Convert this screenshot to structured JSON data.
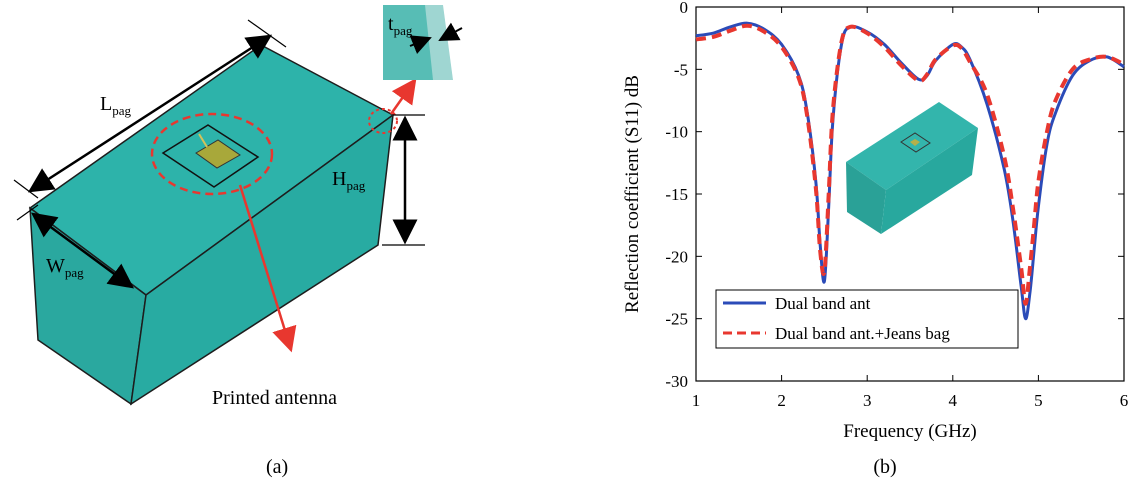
{
  "panel_a": {
    "caption": "(a)",
    "label_length": "L",
    "label_length_sub": "pag",
    "label_width": "W",
    "label_width_sub": "pag",
    "label_height": "H",
    "label_height_sub": "pag",
    "label_thickness": "t",
    "label_thickness_sub": "pag",
    "annotation": "Printed antenna",
    "colors": {
      "bag": "#2db3aa",
      "patch": "#a8a83a",
      "arrow_red": "#e8372f"
    }
  },
  "panel_b": {
    "caption": "(b)",
    "legend": [
      "Dual band ant",
      "Dual band ant.+Jeans bag"
    ]
  },
  "chart_data": {
    "type": "line",
    "xlabel": "Frequency (GHz)",
    "ylabel": "Reflection coefficient (S11) dB",
    "xlim": [
      1,
      6
    ],
    "ylim": [
      -30,
      0
    ],
    "xticks": [
      1,
      2,
      3,
      4,
      5,
      6
    ],
    "yticks": [
      0,
      -5,
      -10,
      -15,
      -20,
      -25,
      -30
    ],
    "grid": false,
    "legend_position": "bottom-left",
    "series": [
      {
        "name": "Dual band ant",
        "color": "#2b4bb8",
        "style": "solid",
        "x": [
          1.0,
          1.2,
          1.4,
          1.6,
          1.8,
          2.0,
          2.2,
          2.3,
          2.4,
          2.45,
          2.5,
          2.55,
          2.6,
          2.7,
          2.8,
          3.0,
          3.2,
          3.4,
          3.6,
          3.7,
          3.8,
          4.0,
          4.1,
          4.2,
          4.4,
          4.6,
          4.7,
          4.8,
          4.85,
          4.9,
          4.95,
          5.0,
          5.1,
          5.2,
          5.4,
          5.6,
          5.8,
          6.0
        ],
        "y": [
          -2.3,
          -2.1,
          -1.6,
          -1.3,
          -1.8,
          -3.0,
          -5.5,
          -8.5,
          -14.0,
          -19.0,
          -22.0,
          -16.0,
          -9.0,
          -3.0,
          -1.6,
          -2.0,
          -3.0,
          -4.5,
          -5.8,
          -5.5,
          -4.3,
          -3.0,
          -3.2,
          -4.2,
          -7.8,
          -13.0,
          -17.0,
          -22.5,
          -25.0,
          -23.0,
          -19.5,
          -16.0,
          -11.0,
          -8.5,
          -5.5,
          -4.3,
          -4.0,
          -4.8
        ]
      },
      {
        "name": "Dual band ant.+Jeans bag",
        "color": "#e8372f",
        "style": "dashed",
        "x": [
          1.0,
          1.2,
          1.4,
          1.6,
          1.8,
          2.0,
          2.2,
          2.3,
          2.4,
          2.45,
          2.5,
          2.55,
          2.6,
          2.7,
          2.8,
          3.0,
          3.2,
          3.4,
          3.6,
          3.7,
          3.8,
          4.0,
          4.1,
          4.2,
          4.4,
          4.6,
          4.7,
          4.8,
          4.85,
          4.9,
          4.95,
          5.0,
          5.1,
          5.2,
          5.4,
          5.6,
          5.8,
          6.0
        ],
        "y": [
          -2.6,
          -2.4,
          -1.9,
          -1.5,
          -2.0,
          -3.2,
          -5.7,
          -8.8,
          -14.5,
          -19.5,
          -21.2,
          -15.0,
          -8.2,
          -2.8,
          -1.6,
          -2.1,
          -3.2,
          -4.7,
          -5.9,
          -5.4,
          -4.2,
          -3.1,
          -3.3,
          -4.4,
          -7.0,
          -12.0,
          -16.0,
          -21.0,
          -23.8,
          -21.0,
          -17.5,
          -14.0,
          -10.0,
          -7.5,
          -5.0,
          -4.2,
          -4.0,
          -4.6
        ]
      }
    ]
  }
}
